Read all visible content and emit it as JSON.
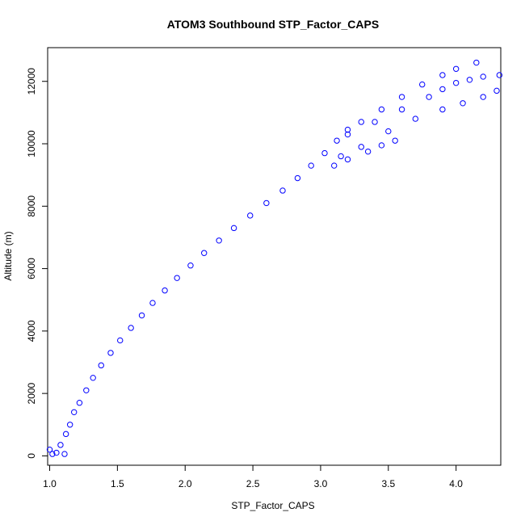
{
  "chart_data": {
    "type": "scatter",
    "title": "ATOM3 Southbound STP_Factor_CAPS",
    "xlabel": "STP_Factor_CAPS",
    "ylabel": "Altitude (m)",
    "xlim": [
      0.985,
      4.33
    ],
    "ylim": [
      -300,
      13080
    ],
    "xticks": [
      1.0,
      1.5,
      2.0,
      2.5,
      3.0,
      3.5,
      4.0
    ],
    "xtick_labels": [
      "1.0",
      "1.5",
      "2.0",
      "2.5",
      "3.0",
      "3.5",
      "4.0"
    ],
    "yticks": [
      0,
      2000,
      4000,
      6000,
      8000,
      10000,
      12000
    ],
    "ytick_labels": [
      "0",
      "2000",
      "4000",
      "6000",
      "8000",
      "10000",
      "12000"
    ],
    "marker": "open-circle",
    "color": "#0000ff",
    "grid": false,
    "legend": "none",
    "series": [
      {
        "points": [
          [
            1.0,
            200
          ],
          [
            1.02,
            60
          ],
          [
            1.05,
            100
          ],
          [
            1.08,
            350
          ],
          [
            1.11,
            60
          ],
          [
            1.12,
            700
          ],
          [
            1.15,
            1000
          ],
          [
            1.18,
            1400
          ],
          [
            1.22,
            1700
          ],
          [
            1.27,
            2100
          ],
          [
            1.32,
            2500
          ],
          [
            1.38,
            2900
          ],
          [
            1.45,
            3300
          ],
          [
            1.52,
            3700
          ],
          [
            1.6,
            4100
          ],
          [
            1.68,
            4500
          ],
          [
            1.76,
            4900
          ],
          [
            1.85,
            5300
          ],
          [
            1.94,
            5700
          ],
          [
            2.04,
            6100
          ],
          [
            2.14,
            6500
          ],
          [
            2.25,
            6900
          ],
          [
            2.36,
            7300
          ],
          [
            2.48,
            7700
          ],
          [
            2.6,
            8100
          ],
          [
            2.72,
            8500
          ],
          [
            2.83,
            8900
          ],
          [
            2.93,
            9300
          ],
          [
            3.03,
            9700
          ],
          [
            3.12,
            10100
          ],
          [
            3.2,
            10450
          ],
          [
            3.3,
            10700
          ],
          [
            3.45,
            11100
          ],
          [
            3.6,
            11500
          ],
          [
            3.75,
            11900
          ],
          [
            3.9,
            12200
          ],
          [
            4.0,
            12400
          ],
          [
            4.15,
            12600
          ],
          [
            3.2,
            10300
          ],
          [
            3.4,
            10700
          ],
          [
            3.6,
            11100
          ],
          [
            3.8,
            11500
          ],
          [
            3.9,
            11750
          ],
          [
            4.0,
            11950
          ],
          [
            4.1,
            12050
          ],
          [
            4.2,
            12150
          ],
          [
            4.32,
            12200
          ],
          [
            3.15,
            9600
          ],
          [
            3.3,
            9900
          ],
          [
            3.5,
            10400
          ],
          [
            3.7,
            10800
          ],
          [
            3.9,
            11100
          ],
          [
            4.05,
            11300
          ],
          [
            4.2,
            11500
          ],
          [
            4.3,
            11700
          ],
          [
            3.1,
            9300
          ],
          [
            3.2,
            9500
          ],
          [
            3.35,
            9750
          ],
          [
            3.45,
            9950
          ],
          [
            3.55,
            10100
          ]
        ]
      }
    ]
  }
}
